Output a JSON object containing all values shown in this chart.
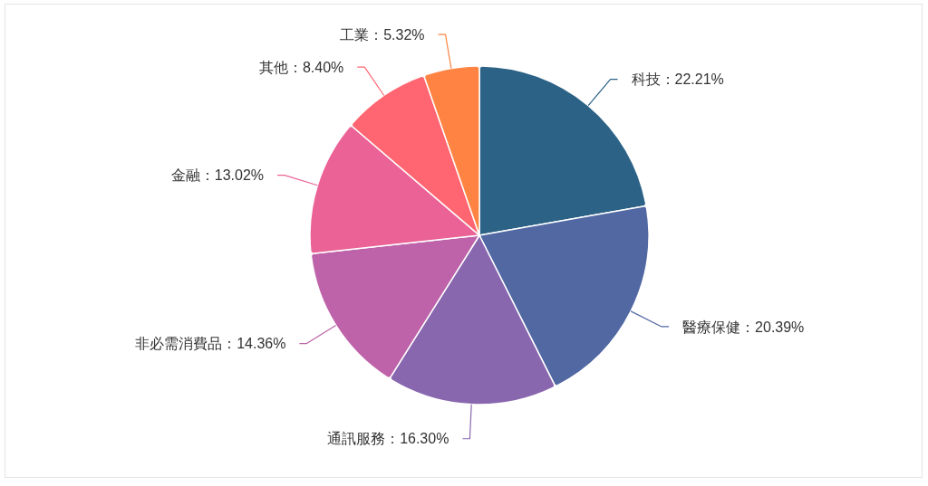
{
  "chart_data": {
    "type": "pie",
    "categories": [
      "科技",
      "醫療保健",
      "通訊服務",
      "非必需消費品",
      "金融",
      "其他",
      "工業"
    ],
    "values": [
      22.21,
      20.39,
      16.3,
      14.36,
      13.02,
      8.4,
      5.32
    ],
    "value_labels": [
      "22.21%",
      "20.39%",
      "16.30%",
      "14.36%",
      "13.02%",
      "8.40%",
      "5.32%"
    ],
    "colors": [
      "#2b6286",
      "#5168a3",
      "#8967af",
      "#be63a9",
      "#ea6296",
      "#ff6671",
      "#ff8443"
    ]
  }
}
